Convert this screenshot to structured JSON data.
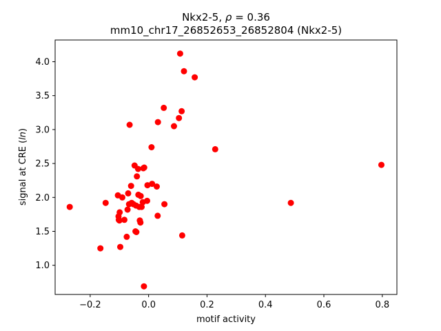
{
  "chart_data": {
    "type": "scatter",
    "title_line1": "Nkx2-5, ",
    "title_rho": "ρ",
    "title_eq": " = 0.36",
    "title_line2": "mm10_chr17_26852653_26852804 (Nkx2-5)",
    "xlabel": "motif activity",
    "ylabel_prefix": "signal at CRE (",
    "ylabel_italic": "ln",
    "ylabel_suffix": ")",
    "xlim": [
      -0.32,
      0.85
    ],
    "ylim": [
      0.57,
      4.32
    ],
    "x_ticks": [
      -0.2,
      0.0,
      0.2,
      0.4,
      0.6,
      0.8
    ],
    "x_tick_labels": [
      "−0.2",
      "0.0",
      "0.2",
      "0.4",
      "0.6",
      "0.8"
    ],
    "y_ticks": [
      1.0,
      1.5,
      2.0,
      2.5,
      3.0,
      3.5,
      4.0
    ],
    "y_tick_labels": [
      "1.0",
      "1.5",
      "2.0",
      "2.5",
      "3.0",
      "3.5",
      "4.0"
    ],
    "grid": false,
    "marker_color": "#ff0000",
    "points": [
      {
        "x": -0.27,
        "y": 1.86
      },
      {
        "x": -0.165,
        "y": 1.25
      },
      {
        "x": -0.147,
        "y": 1.92
      },
      {
        "x": -0.105,
        "y": 2.03
      },
      {
        "x": -0.103,
        "y": 1.72
      },
      {
        "x": -0.102,
        "y": 1.67
      },
      {
        "x": -0.1,
        "y": 1.66
      },
      {
        "x": -0.099,
        "y": 1.78
      },
      {
        "x": -0.097,
        "y": 1.27
      },
      {
        "x": -0.09,
        "y": 2.0
      },
      {
        "x": -0.083,
        "y": 1.67
      },
      {
        "x": -0.075,
        "y": 1.42
      },
      {
        "x": -0.072,
        "y": 1.82
      },
      {
        "x": -0.07,
        "y": 2.06
      },
      {
        "x": -0.067,
        "y": 1.9
      },
      {
        "x": -0.065,
        "y": 3.07
      },
      {
        "x": -0.06,
        "y": 2.17
      },
      {
        "x": -0.058,
        "y": 1.92
      },
      {
        "x": -0.052,
        "y": 1.9
      },
      {
        "x": -0.048,
        "y": 2.47
      },
      {
        "x": -0.045,
        "y": 1.5
      },
      {
        "x": -0.043,
        "y": 1.88
      },
      {
        "x": -0.042,
        "y": 1.49
      },
      {
        "x": -0.04,
        "y": 2.31
      },
      {
        "x": -0.036,
        "y": 2.42
      },
      {
        "x": -0.035,
        "y": 2.04
      },
      {
        "x": -0.032,
        "y": 1.86
      },
      {
        "x": -0.03,
        "y": 1.66
      },
      {
        "x": -0.028,
        "y": 1.63
      },
      {
        "x": -0.027,
        "y": 2.02
      },
      {
        "x": -0.024,
        "y": 1.86
      },
      {
        "x": -0.02,
        "y": 1.93
      },
      {
        "x": -0.018,
        "y": 2.43
      },
      {
        "x": -0.015,
        "y": 2.44
      },
      {
        "x": -0.016,
        "y": 0.69
      },
      {
        "x": -0.005,
        "y": 1.95
      },
      {
        "x": -0.004,
        "y": 2.18
      },
      {
        "x": 0.01,
        "y": 2.74
      },
      {
        "x": 0.012,
        "y": 2.2
      },
      {
        "x": 0.028,
        "y": 2.16
      },
      {
        "x": 0.031,
        "y": 1.73
      },
      {
        "x": 0.032,
        "y": 3.11
      },
      {
        "x": 0.052,
        "y": 3.32
      },
      {
        "x": 0.054,
        "y": 1.9
      },
      {
        "x": 0.087,
        "y": 3.05
      },
      {
        "x": 0.104,
        "y": 3.17
      },
      {
        "x": 0.108,
        "y": 4.12
      },
      {
        "x": 0.113,
        "y": 3.27
      },
      {
        "x": 0.115,
        "y": 1.44
      },
      {
        "x": 0.121,
        "y": 3.86
      },
      {
        "x": 0.158,
        "y": 3.77
      },
      {
        "x": 0.228,
        "y": 2.71
      },
      {
        "x": 0.487,
        "y": 1.92
      },
      {
        "x": 0.797,
        "y": 2.48
      }
    ]
  }
}
